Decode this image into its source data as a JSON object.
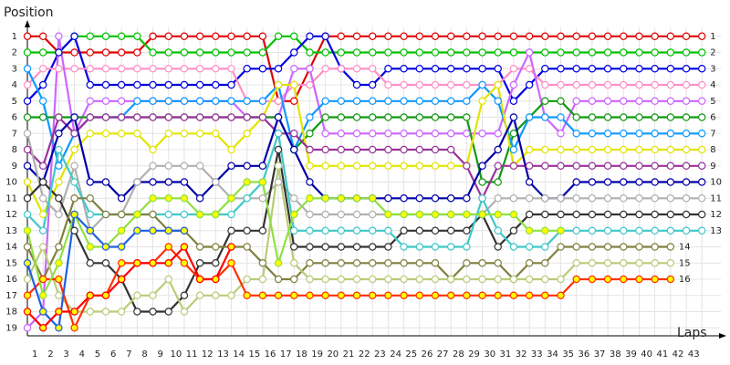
{
  "chart_data": {
    "type": "line",
    "y_label": "Position",
    "x_label": "Laps",
    "grid": true,
    "y_inverted": true,
    "x": [
      0,
      1,
      2,
      3,
      4,
      5,
      6,
      7,
      8,
      9,
      10,
      11,
      12,
      13,
      14,
      15,
      16,
      17,
      18,
      19,
      20,
      21,
      22,
      23,
      24,
      25,
      26,
      27,
      28,
      29,
      30,
      31,
      32,
      33,
      34,
      35,
      36,
      37,
      38,
      39,
      40,
      41,
      42,
      43
    ],
    "xlim": [
      0,
      44.5
    ],
    "xticks": [
      1,
      2,
      3,
      4,
      5,
      6,
      7,
      8,
      9,
      10,
      11,
      12,
      13,
      14,
      15,
      16,
      17,
      18,
      19,
      20,
      21,
      22,
      23,
      24,
      25,
      26,
      27,
      28,
      29,
      30,
      31,
      32,
      33,
      34,
      35,
      36,
      37,
      38,
      39,
      40,
      41,
      42,
      43
    ],
    "ylim": [
      0,
      20
    ],
    "yticks": [
      1,
      2,
      3,
      4,
      5,
      6,
      7,
      8,
      9,
      10,
      11,
      12,
      13,
      14,
      15,
      16,
      17,
      18,
      19
    ],
    "series": [
      {
        "color": "#e00000",
        "marker_fill": "#ffffff",
        "values": [
          1,
          1,
          2,
          2,
          2,
          2,
          2,
          2,
          1,
          1,
          1,
          1,
          1,
          1,
          1,
          1,
          5,
          5,
          3,
          1,
          1,
          1,
          1,
          1,
          1,
          1,
          1,
          1,
          1,
          1,
          1,
          1,
          1,
          1,
          1,
          1,
          1,
          1,
          1,
          1,
          1,
          1,
          1,
          1
        ]
      },
      {
        "color": "#00c000",
        "marker_fill": "#ffffff",
        "values": [
          2,
          2,
          2,
          1,
          1,
          1,
          1,
          1,
          2,
          2,
          2,
          2,
          2,
          2,
          2,
          2,
          1,
          1,
          2,
          2,
          2,
          2,
          2,
          2,
          2,
          2,
          2,
          2,
          2,
          2,
          2,
          2,
          2,
          2,
          2,
          2,
          2,
          2,
          2,
          2,
          2,
          2,
          2,
          2
        ]
      },
      {
        "color": "#0000e0",
        "marker_fill": "#ffffff",
        "values": [
          5,
          4,
          2,
          1,
          4,
          4,
          4,
          4,
          4,
          4,
          4,
          4,
          4,
          4,
          3,
          3,
          3,
          2,
          1,
          1,
          3,
          4,
          4,
          3,
          3,
          3,
          3,
          3,
          3,
          3,
          3,
          5,
          4,
          3,
          3,
          3,
          3,
          3,
          3,
          3,
          3,
          3,
          3,
          3
        ]
      },
      {
        "color": "#ff90c8",
        "marker_fill": "#ffffff",
        "values": [
          4,
          3,
          3,
          3,
          3,
          3,
          3,
          3,
          3,
          3,
          3,
          3,
          3,
          3,
          5,
          5,
          5,
          4,
          4,
          3,
          3,
          3,
          3,
          4,
          4,
          4,
          4,
          4,
          4,
          4,
          4,
          3,
          3,
          4,
          4,
          4,
          4,
          4,
          4,
          4,
          4,
          4,
          4,
          4
        ]
      },
      {
        "color": "#cc66ff",
        "marker_fill": "#ffffff",
        "values": [
          19,
          18,
          1,
          7,
          5,
          5,
          5,
          5,
          5,
          5,
          5,
          5,
          5,
          5,
          6,
          6,
          6,
          3,
          3,
          7,
          7,
          7,
          7,
          7,
          7,
          7,
          7,
          7,
          7,
          7,
          7,
          4,
          2,
          6,
          7,
          5,
          5,
          5,
          5,
          5,
          5,
          5,
          5,
          5
        ]
      },
      {
        "color": "#119911",
        "marker_fill": "#ffffff",
        "values": [
          6,
          6,
          6,
          6,
          6,
          6,
          6,
          6,
          6,
          6,
          6,
          6,
          6,
          6,
          6,
          6,
          6,
          8,
          7,
          6,
          6,
          6,
          6,
          6,
          6,
          6,
          6,
          6,
          6,
          10,
          10,
          7,
          6,
          5,
          5,
          6,
          6,
          6,
          6,
          6,
          6,
          6,
          6,
          6
        ]
      },
      {
        "color": "#1099ff",
        "marker_fill": "#ffffff",
        "values": [
          3,
          5,
          9,
          7,
          6,
          6,
          6,
          5,
          5,
          5,
          5,
          5,
          5,
          5,
          5,
          5,
          4,
          8,
          6,
          5,
          5,
          5,
          5,
          5,
          5,
          5,
          5,
          5,
          5,
          4,
          5,
          8,
          6,
          6,
          6,
          7,
          7,
          7,
          7,
          7,
          7,
          7,
          7,
          7
        ]
      },
      {
        "color": "#e4e400",
        "marker_fill": "#ffffff",
        "values": [
          10,
          12,
          10,
          8,
          7,
          7,
          7,
          7,
          8,
          7,
          7,
          7,
          7,
          8,
          7,
          6,
          4,
          4,
          9,
          9,
          9,
          9,
          9,
          9,
          9,
          9,
          9,
          9,
          9,
          5,
          4,
          9,
          8,
          8,
          8,
          8,
          8,
          8,
          8,
          8,
          8,
          8,
          8,
          8
        ]
      },
      {
        "color": "#993399",
        "marker_fill": "#ffffff",
        "values": [
          8,
          9,
          6,
          7,
          6,
          6,
          6,
          6,
          6,
          6,
          6,
          6,
          6,
          6,
          6,
          6,
          7,
          7,
          8,
          8,
          8,
          8,
          8,
          8,
          8,
          8,
          8,
          8,
          9,
          11,
          9,
          9,
          9,
          9,
          9,
          9,
          9,
          9,
          9,
          9,
          9,
          9,
          9,
          9
        ]
      },
      {
        "color": "#0000a8",
        "marker_fill": "#ffffff",
        "values": [
          9,
          10,
          7,
          6,
          10,
          10,
          11,
          10,
          10,
          10,
          10,
          11,
          10,
          9,
          9,
          9,
          6,
          8,
          10,
          11,
          11,
          11,
          11,
          11,
          11,
          11,
          11,
          11,
          11,
          9,
          8,
          6,
          10,
          11,
          11,
          10,
          10,
          10,
          10,
          10,
          10,
          10,
          10,
          10
        ]
      },
      {
        "color": "#b0b0b0",
        "marker_fill": "#ffffff",
        "values": [
          7,
          11,
          12,
          9,
          13,
          12,
          12,
          10,
          9,
          9,
          9,
          9,
          10,
          11,
          11,
          11,
          10,
          11,
          12,
          12,
          12,
          12,
          12,
          12,
          12,
          12,
          12,
          12,
          12,
          12,
          11,
          11,
          11,
          11,
          11,
          11,
          11,
          11,
          11,
          11,
          11,
          11,
          11,
          11
        ]
      },
      {
        "color": "#333333",
        "marker_fill": "#ffffff",
        "values": [
          11,
          10,
          11,
          13,
          15,
          15,
          16,
          18,
          18,
          18,
          17,
          15,
          15,
          13,
          13,
          13,
          8,
          14,
          14,
          14,
          14,
          14,
          14,
          14,
          13,
          13,
          13,
          13,
          13,
          12,
          14,
          13,
          12,
          12,
          12,
          12,
          12,
          12,
          12,
          12,
          12,
          12,
          12,
          12
        ]
      },
      {
        "color": "#40c8c8",
        "marker_fill": "#ffffff",
        "values": [
          12,
          13,
          8,
          10,
          12,
          12,
          12,
          12,
          12,
          12,
          12,
          12,
          12,
          12,
          11,
          10,
          7,
          13,
          13,
          13,
          13,
          13,
          13,
          13,
          14,
          14,
          14,
          14,
          14,
          11,
          13,
          14,
          14,
          14,
          13,
          13,
          13,
          13,
          13,
          13,
          13,
          13,
          13,
          13
        ]
      },
      {
        "color": "#808040",
        "marker_fill": "#ffffff",
        "values": [
          14,
          16,
          14,
          11,
          11,
          12,
          12,
          12,
          12,
          13,
          13,
          14,
          14,
          14,
          14,
          15,
          16,
          16,
          15,
          15,
          15,
          15,
          15,
          15,
          15,
          15,
          15,
          16,
          15,
          15,
          15,
          16,
          15,
          15,
          14,
          14,
          14,
          14,
          14,
          14,
          14,
          14,
          null,
          null
        ]
      },
      {
        "color": "#b8cc78",
        "marker_fill": "#ffffff",
        "values": [
          16,
          14,
          17,
          18,
          18,
          18,
          18,
          17,
          17,
          16,
          18,
          17,
          17,
          17,
          16,
          16,
          9,
          15,
          16,
          16,
          16,
          16,
          16,
          16,
          16,
          16,
          16,
          16,
          16,
          16,
          16,
          16,
          16,
          16,
          16,
          15,
          15,
          15,
          15,
          15,
          15,
          15,
          null,
          null
        ]
      },
      {
        "color": "#ff3000",
        "marker_fill": "#ffff00",
        "values": [
          17,
          16,
          16,
          19,
          17,
          17,
          15,
          15,
          15,
          14,
          15,
          16,
          16,
          15,
          17,
          17,
          17,
          17,
          17,
          17,
          17,
          17,
          17,
          17,
          17,
          17,
          17,
          17,
          17,
          17,
          17,
          17,
          17,
          17,
          17,
          16,
          16,
          16,
          16,
          16,
          16,
          16,
          null,
          null
        ]
      },
      {
        "color": "#90e040",
        "marker_fill": "#ffff00",
        "values": [
          13,
          17,
          15,
          12,
          14,
          14,
          13,
          12,
          11,
          11,
          11,
          12,
          12,
          11,
          10,
          10,
          15,
          12,
          11,
          11,
          11,
          11,
          11,
          12,
          12,
          12,
          12,
          12,
          12,
          12,
          12,
          12,
          13,
          13,
          13,
          null,
          null,
          null,
          null,
          null,
          null,
          null,
          null,
          null
        ]
      },
      {
        "color": "#2060e0",
        "marker_fill": "#ffff00",
        "values": [
          15,
          18,
          19,
          12,
          13,
          14,
          14,
          13,
          13,
          13,
          13,
          null,
          null,
          null,
          null,
          null,
          null,
          null,
          null,
          null,
          null,
          null,
          null,
          null,
          null,
          null,
          null,
          null,
          null,
          null,
          null,
          null,
          null,
          null,
          null,
          null,
          null,
          null,
          null,
          null,
          null,
          null,
          null,
          null
        ]
      },
      {
        "color": "#ff0000",
        "marker_fill": "#ffff00",
        "values": [
          18,
          19,
          18,
          18,
          17,
          17,
          16,
          15,
          15,
          15,
          14,
          16,
          16,
          14,
          null,
          null,
          null,
          null,
          null,
          null,
          null,
          null,
          null,
          null,
          null,
          null,
          null,
          null,
          null,
          null,
          null,
          null,
          null,
          null,
          null,
          null,
          null,
          null,
          null,
          null,
          null,
          null,
          null,
          null
        ]
      }
    ]
  }
}
